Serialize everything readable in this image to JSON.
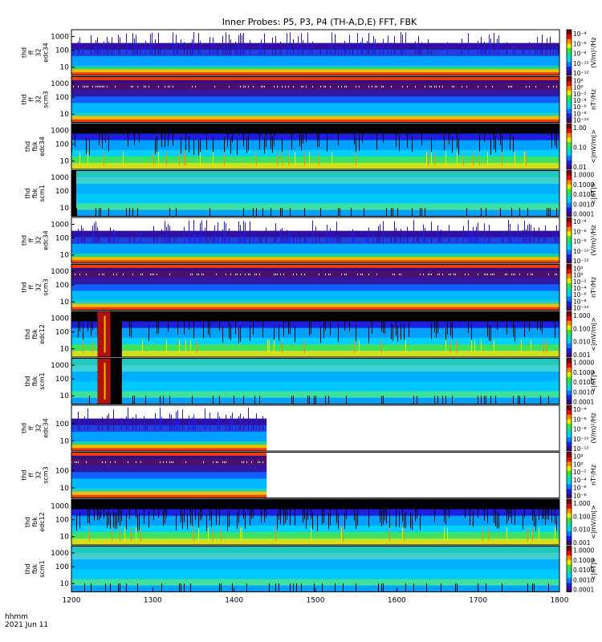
{
  "chart_data": {
    "type": "heatmap",
    "title": "Inner Probes: P5, P3, P4 (TH-A,D,E) FFT, FBK",
    "x_range": [
      1200,
      1800
    ],
    "x_ticks": [
      "1200",
      "1300",
      "1400",
      "1500",
      "1600",
      "1700",
      "1800"
    ],
    "x_annotation": [
      "hhmm",
      "2021 Jun 11"
    ],
    "colormap": [
      "#000000",
      "#3a0a7a",
      "#1e1ee0",
      "#0a7aff",
      "#00d0ff",
      "#10e0a0",
      "#40e040",
      "#e8f000",
      "#ff8800",
      "#e01010",
      "#7a0000"
    ],
    "panels": [
      {
        "label": [
          "thd",
          "ff",
          "32",
          "edc34"
        ],
        "kind": "fft_e",
        "y_ticks": [
          "1000",
          "100",
          "10"
        ],
        "cbar_ticks": [
          "10⁻⁴",
          "10⁻⁶",
          "10⁻⁸",
          "10⁻¹⁰",
          "10⁻¹²"
        ],
        "cbar_label": "(V/m)²/Hz",
        "data_end": 1800
      },
      {
        "label": [
          "thd",
          "ff",
          "32",
          "scm3"
        ],
        "kind": "fft_b",
        "y_ticks": [
          "1000",
          "100",
          "10"
        ],
        "cbar_ticks": [
          "10²",
          "10⁰",
          "10⁻²",
          "10⁻⁴",
          "10⁻⁶",
          "10⁻⁸",
          "10⁻¹⁰"
        ],
        "cbar_label": "nT²/Hz",
        "data_end": 1800
      },
      {
        "label": [
          "thd",
          "fbk",
          "edc34"
        ],
        "kind": "fbk_e",
        "y_ticks": [
          "1000",
          "100",
          "10"
        ],
        "cbar_ticks": [
          "1.00",
          "0.10",
          "0.01"
        ],
        "cbar_label": "<|mV/m|>",
        "data_end": 1800
      },
      {
        "label": [
          "thd",
          "fbk",
          "scm1"
        ],
        "kind": "fbk_b",
        "y_ticks": [
          "1000",
          "100",
          "10"
        ],
        "cbar_ticks": [
          "1.0000",
          "0.1000",
          "0.0100",
          "0.0010",
          "0.0001"
        ],
        "cbar_label": "<|nT|>",
        "data_end": 1800
      },
      {
        "label": [
          "thd",
          "ff",
          "32",
          "edc34"
        ],
        "kind": "fft_e",
        "y_ticks": [
          "1000",
          "100",
          "10"
        ],
        "cbar_ticks": [
          "10⁻⁴",
          "10⁻⁶",
          "10⁻⁸",
          "10⁻¹⁰",
          "10⁻¹²"
        ],
        "cbar_label": "(V/m)²/Hz",
        "data_end": 1800
      },
      {
        "label": [
          "thd",
          "ff",
          "32",
          "scm3"
        ],
        "kind": "fft_b",
        "y_ticks": [
          "1000",
          "100",
          "10"
        ],
        "cbar_ticks": [
          "10²",
          "10⁰",
          "10⁻²",
          "10⁻⁴",
          "10⁻⁶",
          "10⁻⁸",
          "10⁻¹⁰"
        ],
        "cbar_label": "nT²/Hz",
        "data_end": 1800
      },
      {
        "label": [
          "thd",
          "fbk",
          "edc12"
        ],
        "kind": "fbk_e_gap",
        "y_ticks": [
          "1000",
          "100",
          "10"
        ],
        "cbar_ticks": [
          "1.000",
          "0.100",
          "0.010",
          "0.001"
        ],
        "cbar_label": "<|mV/m|>",
        "data_end": 1800
      },
      {
        "label": [
          "thd",
          "fbk",
          "scm1"
        ],
        "kind": "fbk_b_gap",
        "y_ticks": [
          "1000",
          "100",
          "10"
        ],
        "cbar_ticks": [
          "1.0000",
          "0.1000",
          "0.0100",
          "0.0010",
          "0.0001"
        ],
        "cbar_label": "<|nT|>",
        "data_end": 1800
      },
      {
        "label": [
          "thd",
          "ff",
          "32",
          "edc34"
        ],
        "kind": "fft_e",
        "y_ticks": [
          "100",
          "10"
        ],
        "cbar_ticks": [
          "10⁻⁴",
          "10⁻⁶",
          "10⁻⁸",
          "10⁻¹⁰",
          "10⁻¹²"
        ],
        "cbar_label": "(V/m)²/Hz",
        "data_end": 1440
      },
      {
        "label": [
          "thd",
          "ff",
          "32",
          "scm3"
        ],
        "kind": "fft_b",
        "y_ticks": [
          "100",
          "10"
        ],
        "cbar_ticks": [
          "10²",
          "10⁰",
          "10⁻²",
          "10⁻⁴",
          "10⁻⁶",
          "10⁻⁸"
        ],
        "cbar_label": "nT²/Hz",
        "data_end": 1440
      },
      {
        "label": [
          "thd",
          "fbk",
          "edc12"
        ],
        "kind": "fbk_e_sparse",
        "y_ticks": [
          "1000",
          "100",
          "10"
        ],
        "cbar_ticks": [
          "1.000",
          "0.100",
          "0.010",
          "0.001"
        ],
        "cbar_label": "<|mV/m|>",
        "data_end": 1800
      },
      {
        "label": [
          "thd",
          "fbk",
          "scm1"
        ],
        "kind": "fbk_b",
        "y_ticks": [
          "1000",
          "100",
          "10"
        ],
        "cbar_ticks": [
          "1.0000",
          "0.1000",
          "0.0100",
          "0.0010",
          "0.0001"
        ],
        "cbar_label": "<|nT|>",
        "data_end": 1800
      }
    ]
  }
}
